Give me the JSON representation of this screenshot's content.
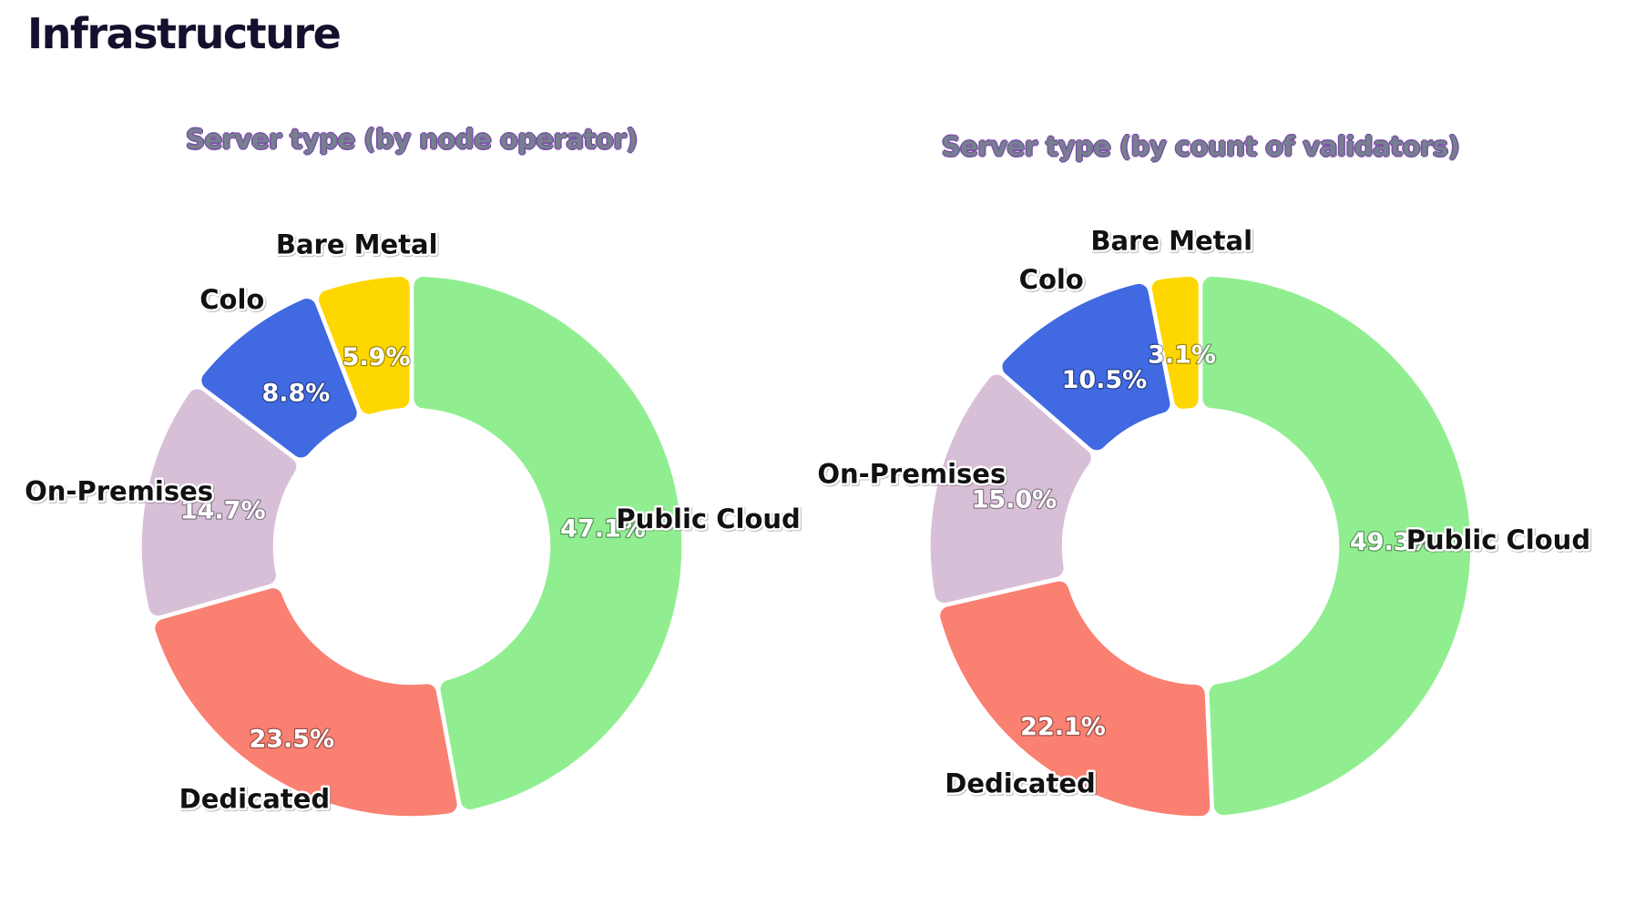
{
  "page": {
    "title": "Infrastructure"
  },
  "theme": {
    "background": "#ffffff",
    "heading_color": "#14112e",
    "chart_title_color": "#76808f",
    "chart_title_outline": "#7b4fa6",
    "category_label_color": "#111111",
    "value_label_color": "#ffffff"
  },
  "chart_data": [
    {
      "type": "pie",
      "variant": "donut",
      "title": "Server type (by node operator)",
      "labels": [
        "Public Cloud",
        "Dedicated",
        "On-Premises",
        "Colo",
        "Bare Metal"
      ],
      "values": [
        47.1,
        23.5,
        14.7,
        8.8,
        5.9
      ],
      "unit": "%",
      "value_label_format": "one_decimal_percent",
      "colors": [
        "#90EE90",
        "#FA8072",
        "#D8BFD8",
        "#4169E1",
        "#FFD700"
      ],
      "start_angle_deg": 0,
      "direction": "clockwise",
      "inner_radius_ratio": 0.51,
      "category_labels_position": "outside",
      "value_labels_position": "inside",
      "legend": "none"
    },
    {
      "type": "pie",
      "variant": "donut",
      "title": "Server type (by count of validators)",
      "labels": [
        "Public Cloud",
        "Dedicated",
        "On-Premises",
        "Colo",
        "Bare Metal"
      ],
      "values": [
        49.3,
        22.1,
        15.0,
        10.5,
        3.1
      ],
      "unit": "%",
      "value_label_format": "one_decimal_percent",
      "colors": [
        "#90EE90",
        "#FA8072",
        "#D8BFD8",
        "#4169E1",
        "#FFD700"
      ],
      "start_angle_deg": 0,
      "direction": "clockwise",
      "inner_radius_ratio": 0.51,
      "category_labels_position": "outside",
      "value_labels_position": "inside",
      "legend": "none"
    }
  ]
}
